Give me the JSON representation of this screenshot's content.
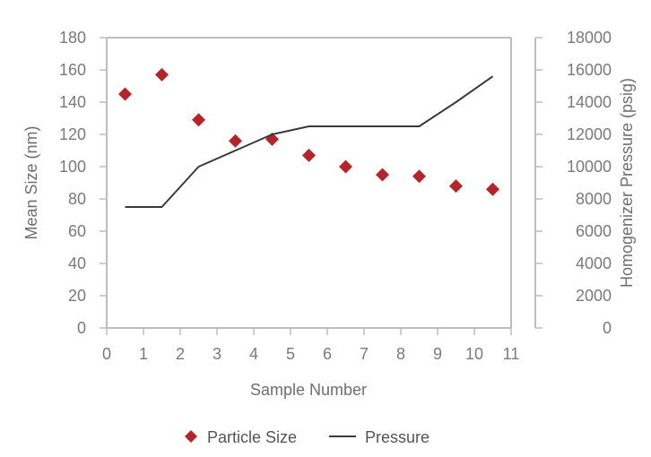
{
  "chart_data": {
    "type": "scatter+line",
    "xlabel": "Sample Number",
    "ylabel_left": "Mean Size (nm)",
    "ylabel_right": "Homogenizer Pressure (psig)",
    "xlim": [
      0,
      11
    ],
    "ylim_left": [
      0,
      180
    ],
    "ylim_right": [
      0,
      18000
    ],
    "x_ticks": [
      0,
      1,
      2,
      3,
      4,
      5,
      6,
      7,
      8,
      9,
      10,
      11
    ],
    "y_left_ticks": [
      0,
      20,
      40,
      60,
      80,
      100,
      120,
      140,
      160,
      180
    ],
    "y_right_ticks": [
      0,
      2000,
      4000,
      6000,
      8000,
      10000,
      12000,
      14000,
      16000,
      18000
    ],
    "grid": false,
    "legend_position": "bottom-center",
    "series": [
      {
        "name": "Particle Size",
        "kind": "scatter",
        "marker": "diamond",
        "axis": "left",
        "color": "#b5242b",
        "x": [
          0.5,
          1.5,
          2.5,
          3.5,
          4.5,
          5.5,
          6.5,
          7.5,
          8.5,
          9.5,
          10.5
        ],
        "y": [
          145,
          157,
          129,
          116,
          117,
          107,
          100,
          95,
          94,
          88,
          86
        ]
      },
      {
        "name": "Pressure",
        "kind": "line",
        "axis": "right",
        "color": "#3a3a3a",
        "x": [
          0.5,
          1.5,
          2.5,
          3.5,
          4.5,
          5.5,
          6.5,
          7.5,
          8.5,
          9.5,
          10.5
        ],
        "y": [
          7500,
          7500,
          10000,
          11000,
          12000,
          12500,
          12500,
          12500,
          12500,
          14000,
          15600
        ]
      }
    ]
  }
}
